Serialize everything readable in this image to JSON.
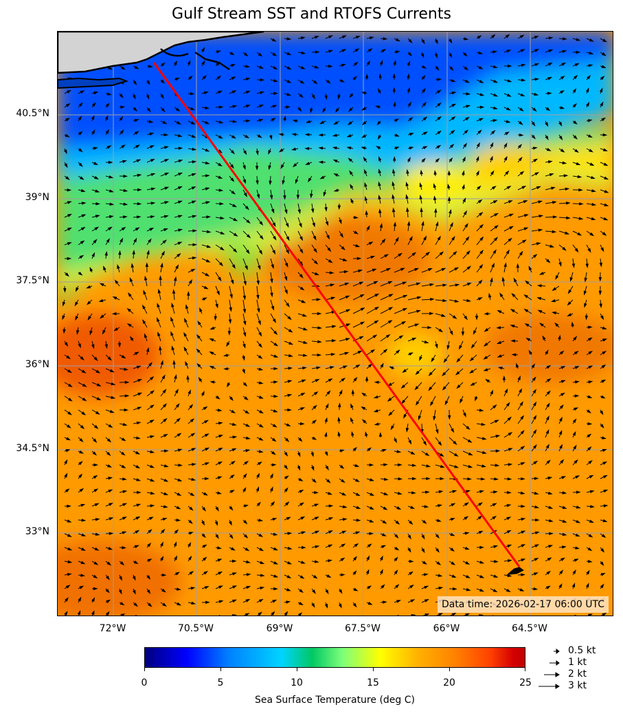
{
  "title": "Gulf Stream SST and RTOFS Currents",
  "lat_labels": [
    "40.5°N",
    "39°N",
    "37.5°N",
    "36°N",
    "34.5°N",
    "33°N"
  ],
  "lon_labels": [
    "72°W",
    "70.5°W",
    "69°W",
    "67.5°W",
    "66°W",
    "64.5°W"
  ],
  "data_time": "Data time: 2026-02-17 06:00 UTC",
  "colorbar": {
    "ticks": [
      "0",
      "5",
      "10",
      "15",
      "20",
      "25"
    ],
    "label": "Sea Surface Temperature (deg C)",
    "range": [
      0,
      25
    ],
    "colormap": "jet"
  },
  "quiver_key": [
    "0.5 kt",
    "1 kt",
    "2 kt",
    "3 kt"
  ],
  "track": {
    "color": "#ff0000",
    "start": {
      "lon": -71.7,
      "lat": 41.0
    },
    "end": {
      "lon": -64.2,
      "lat": 32.4
    }
  },
  "land_color": "#d3d3d3",
  "grid": true
}
